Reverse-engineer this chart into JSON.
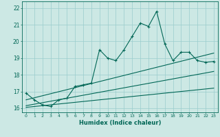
{
  "xlabel": "Humidex (Indice chaleur)",
  "bg_color": "#cce8e4",
  "grid_color": "#99cccc",
  "line_color": "#006655",
  "xlim": [
    -0.5,
    23.5
  ],
  "ylim": [
    15.75,
    22.4
  ],
  "yticks": [
    16,
    17,
    18,
    19,
    20,
    21,
    22
  ],
  "xticks": [
    0,
    1,
    2,
    3,
    4,
    5,
    6,
    7,
    8,
    9,
    10,
    11,
    12,
    13,
    14,
    15,
    16,
    17,
    18,
    19,
    20,
    21,
    22,
    23
  ],
  "xtick_labels": [
    "0",
    "1",
    "2",
    "3",
    "4",
    "5",
    "6",
    "7",
    "8",
    "9",
    "10",
    "11",
    "12",
    "13",
    "14",
    "15",
    "16",
    "17",
    "18",
    "19",
    "20",
    "21",
    "22",
    "23"
  ],
  "main_line_x": [
    0,
    1,
    2,
    3,
    4,
    5,
    6,
    7,
    8,
    9,
    10,
    11,
    12,
    13,
    14,
    15,
    16,
    17,
    18,
    19,
    20,
    21,
    22,
    23
  ],
  "main_line_y": [
    16.9,
    16.5,
    16.2,
    16.1,
    16.5,
    16.6,
    17.3,
    17.4,
    17.5,
    19.5,
    19.0,
    18.85,
    19.5,
    20.3,
    21.1,
    20.9,
    21.8,
    19.85,
    18.85,
    19.35,
    19.35,
    18.85,
    18.75,
    18.8
  ],
  "line2_x": [
    0,
    23
  ],
  "line2_y": [
    16.5,
    19.3
  ],
  "line3_x": [
    0,
    23
  ],
  "line3_y": [
    16.15,
    18.2
  ],
  "line4_x": [
    0,
    23
  ],
  "line4_y": [
    16.05,
    17.2
  ]
}
